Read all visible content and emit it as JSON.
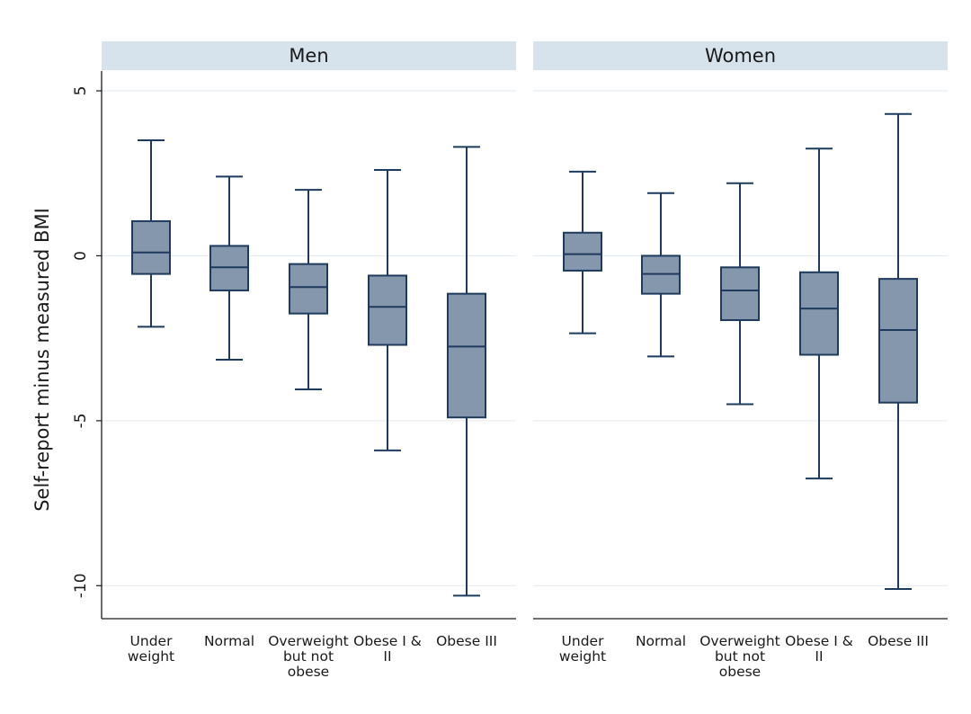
{
  "chart_data": {
    "type": "box",
    "ylabel": "Self-report minus measured BMI",
    "ylim": [
      -11,
      5.6
    ],
    "yticks": [
      5,
      0,
      -5,
      -10
    ],
    "ytick_labels": [
      "5",
      "0",
      "-5",
      "-10"
    ],
    "grid": true,
    "categories": [
      "Under weight",
      "Normal",
      "Overweight but not obese",
      "Obese I & II",
      "Obese III"
    ],
    "category_label_lines": [
      [
        "Under",
        "weight"
      ],
      [
        "Normal"
      ],
      [
        "Overweight",
        "but not",
        "obese"
      ],
      [
        "Obese I &",
        "II"
      ],
      [
        "Obese III"
      ]
    ],
    "panels": [
      {
        "title": "Men",
        "boxes": [
          {
            "category": "Under weight",
            "whisker_low": -2.15,
            "q1": -0.55,
            "median": 0.1,
            "q3": 1.05,
            "whisker_high": 3.5
          },
          {
            "category": "Normal",
            "whisker_low": -3.15,
            "q1": -1.05,
            "median": -0.35,
            "q3": 0.3,
            "whisker_high": 2.4
          },
          {
            "category": "Overweight but not obese",
            "whisker_low": -4.05,
            "q1": -1.75,
            "median": -0.95,
            "q3": -0.25,
            "whisker_high": 2.0
          },
          {
            "category": "Obese I & II",
            "whisker_low": -5.9,
            "q1": -2.7,
            "median": -1.55,
            "q3": -0.6,
            "whisker_high": 2.6
          },
          {
            "category": "Obese III",
            "whisker_low": -10.3,
            "q1": -4.9,
            "median": -2.75,
            "q3": -1.15,
            "whisker_high": 3.3
          }
        ]
      },
      {
        "title": "Women",
        "boxes": [
          {
            "category": "Under weight",
            "whisker_low": -2.35,
            "q1": -0.45,
            "median": 0.05,
            "q3": 0.7,
            "whisker_high": 2.55
          },
          {
            "category": "Normal",
            "whisker_low": -3.05,
            "q1": -1.15,
            "median": -0.55,
            "q3": 0.0,
            "whisker_high": 1.9
          },
          {
            "category": "Overweight but not obese",
            "whisker_low": -4.5,
            "q1": -1.95,
            "median": -1.05,
            "q3": -0.35,
            "whisker_high": 2.2
          },
          {
            "category": "Obese I & II",
            "whisker_low": -6.75,
            "q1": -3.0,
            "median": -1.6,
            "q3": -0.5,
            "whisker_high": 3.25
          },
          {
            "category": "Obese III",
            "whisker_low": -10.1,
            "q1": -4.45,
            "median": -2.25,
            "q3": -0.7,
            "whisker_high": 4.3
          }
        ]
      }
    ],
    "colors": {
      "box_fill": "#8497ad",
      "box_stroke": "#1e3a5c",
      "panel_header_fill": "#d6e3ec",
      "grid": "#e8edf1",
      "axis": "#1a1a1a"
    }
  }
}
